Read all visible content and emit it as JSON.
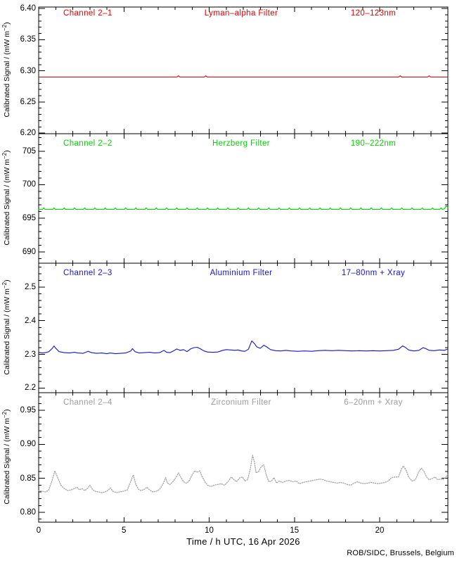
{
  "page": {
    "background": "#ffffff",
    "credit": "ROB/SIDC, Brussels, Belgium"
  },
  "axis": {
    "x_title": "Time / h UTC, 16 Apr 2026",
    "x_range": [
      0,
      24
    ],
    "x_ticks": [
      0,
      5,
      10,
      15,
      20
    ],
    "x_tick_labels": [
      "0",
      "5",
      "10",
      "15",
      "20"
    ],
    "x_minor_step": 1,
    "y_label_pre": "Calibrated Signal / (mW m",
    "y_label_sup": "−2",
    "y_label_post": ")",
    "frame_color": "#000000"
  },
  "chart_data": [
    {
      "type": "line",
      "channel": "Channel 2–1",
      "filter": "Lyman–alpha Filter",
      "band": "120–123nm",
      "color": "#e10000",
      "line_style": "solid",
      "ylim": [
        6.199,
        6.4025
      ],
      "yticks": [
        6.2,
        6.25,
        6.3,
        6.35,
        6.4
      ],
      "ytick_labels": [
        "6.20",
        "6.25",
        "6.30",
        "6.35",
        "6.40"
      ],
      "y_minor_step": 0.01,
      "baseline": 6.29,
      "spike_value": 6.292,
      "spike_halfwidth": 0.09,
      "spike_times": [
        8.2,
        9.8,
        21.2,
        22.9
      ]
    },
    {
      "type": "line",
      "channel": "Channel 2–2",
      "filter": "Herzberg Filter",
      "band": "190–222nm",
      "color": "#00d300",
      "line_style": "solid",
      "ylim": [
        688.3,
        707.6
      ],
      "yticks": [
        690,
        695,
        700,
        705
      ],
      "ytick_labels": [
        "690",
        "695",
        "700",
        "705"
      ],
      "y_minor_step": 1,
      "baseline": 696.33,
      "spike_value": 696.55,
      "spike_halfwidth": 0.07,
      "spike_times": [
        0.3,
        0.9,
        1.5,
        2.1,
        2.7,
        3.3,
        3.9,
        4.5,
        5.1,
        5.7,
        6.3,
        6.9,
        7.5,
        8.1,
        8.7,
        9.3,
        9.9,
        10.5,
        11.1,
        11.7,
        12.3,
        12.9,
        13.5,
        14.1,
        14.7,
        15.3,
        15.9,
        16.5,
        17.1,
        17.7,
        18.3,
        18.9,
        19.5,
        20.1,
        20.7,
        21.3,
        21.9,
        22.5,
        23.1,
        23.6
      ],
      "tail_points": [
        [
          23.8,
          696.4
        ],
        [
          23.9,
          696.85
        ],
        [
          24,
          696.6
        ]
      ]
    },
    {
      "type": "line",
      "channel": "Channel 2–3",
      "filter": "Aluminium Filter",
      "band": "17–80nm + Xray",
      "color": "#1414cd",
      "line_style": "solid",
      "ylim": [
        2.186,
        2.571
      ],
      "yticks": [
        2.2,
        2.3,
        2.4,
        2.5
      ],
      "ytick_labels": [
        "2.2",
        "2.3",
        "2.4",
        "2.5"
      ],
      "y_minor_step": 0.02,
      "points": [
        [
          0,
          2.306
        ],
        [
          0.2,
          2.304
        ],
        [
          0.4,
          2.305
        ],
        [
          0.6,
          2.308
        ],
        [
          0.8,
          2.318
        ],
        [
          0.9,
          2.325
        ],
        [
          1.0,
          2.318
        ],
        [
          1.2,
          2.308
        ],
        [
          1.5,
          2.305
        ],
        [
          1.8,
          2.304
        ],
        [
          2.1,
          2.306
        ],
        [
          2.3,
          2.304
        ],
        [
          2.6,
          2.303
        ],
        [
          2.9,
          2.309
        ],
        [
          3.1,
          2.305
        ],
        [
          3.4,
          2.303
        ],
        [
          3.7,
          2.304
        ],
        [
          4.0,
          2.302
        ],
        [
          4.2,
          2.304
        ],
        [
          4.5,
          2.302
        ],
        [
          4.8,
          2.303
        ],
        [
          5.1,
          2.304
        ],
        [
          5.4,
          2.31
        ],
        [
          5.5,
          2.317
        ],
        [
          5.65,
          2.308
        ],
        [
          5.9,
          2.304
        ],
        [
          6.2,
          2.305
        ],
        [
          6.5,
          2.306
        ],
        [
          6.8,
          2.304
        ],
        [
          7.1,
          2.305
        ],
        [
          7.35,
          2.312
        ],
        [
          7.5,
          2.306
        ],
        [
          7.7,
          2.305
        ],
        [
          7.9,
          2.31
        ],
        [
          8.1,
          2.316
        ],
        [
          8.3,
          2.312
        ],
        [
          8.5,
          2.314
        ],
        [
          8.7,
          2.308
        ],
        [
          8.9,
          2.316
        ],
        [
          9.1,
          2.32
        ],
        [
          9.3,
          2.321
        ],
        [
          9.5,
          2.316
        ],
        [
          9.7,
          2.31
        ],
        [
          9.9,
          2.307
        ],
        [
          10.2,
          2.306
        ],
        [
          10.5,
          2.307
        ],
        [
          10.8,
          2.312
        ],
        [
          11.0,
          2.314
        ],
        [
          11.3,
          2.313
        ],
        [
          11.5,
          2.312
        ],
        [
          11.7,
          2.313
        ],
        [
          11.9,
          2.31
        ],
        [
          12.1,
          2.309
        ],
        [
          12.3,
          2.315
        ],
        [
          12.5,
          2.34
        ],
        [
          12.65,
          2.332
        ],
        [
          12.8,
          2.322
        ],
        [
          13.0,
          2.318
        ],
        [
          13.2,
          2.327
        ],
        [
          13.35,
          2.323
        ],
        [
          13.6,
          2.314
        ],
        [
          13.9,
          2.311
        ],
        [
          14.2,
          2.31
        ],
        [
          14.5,
          2.312
        ],
        [
          14.8,
          2.31
        ],
        [
          15.2,
          2.309
        ],
        [
          15.6,
          2.31
        ],
        [
          16.0,
          2.309
        ],
        [
          16.4,
          2.311
        ],
        [
          16.8,
          2.312
        ],
        [
          17.2,
          2.311
        ],
        [
          17.6,
          2.312
        ],
        [
          18.0,
          2.311
        ],
        [
          18.4,
          2.31
        ],
        [
          18.8,
          2.311
        ],
        [
          19.2,
          2.31
        ],
        [
          19.6,
          2.311
        ],
        [
          20.0,
          2.31
        ],
        [
          20.4,
          2.311
        ],
        [
          20.8,
          2.312
        ],
        [
          21.1,
          2.315
        ],
        [
          21.35,
          2.325
        ],
        [
          21.5,
          2.321
        ],
        [
          21.7,
          2.313
        ],
        [
          22.0,
          2.31
        ],
        [
          22.3,
          2.312
        ],
        [
          22.55,
          2.32
        ],
        [
          22.7,
          2.317
        ],
        [
          22.9,
          2.312
        ],
        [
          23.2,
          2.311
        ],
        [
          23.5,
          2.313
        ],
        [
          23.8,
          2.312
        ],
        [
          24.0,
          2.316
        ]
      ]
    },
    {
      "type": "line",
      "channel": "Channel 2–4",
      "filter": "Zirconium Filter",
      "band": "6–20nm + Xray",
      "color": "#9b9b9b",
      "line_style": "dotted",
      "ylim": [
        0.7855,
        0.976
      ],
      "yticks": [
        0.8,
        0.85,
        0.9,
        0.95
      ],
      "ytick_labels": [
        "0.80",
        "0.85",
        "0.90",
        "0.95"
      ],
      "y_minor_step": 0.01,
      "points": [
        [
          0,
          0.832
        ],
        [
          0.2,
          0.831
        ],
        [
          0.4,
          0.83
        ],
        [
          0.6,
          0.833
        ],
        [
          0.8,
          0.848
        ],
        [
          0.95,
          0.861
        ],
        [
          1.1,
          0.852
        ],
        [
          1.3,
          0.84
        ],
        [
          1.5,
          0.835
        ],
        [
          1.7,
          0.832
        ],
        [
          1.9,
          0.833
        ],
        [
          2.1,
          0.835
        ],
        [
          2.25,
          0.837
        ],
        [
          2.4,
          0.833
        ],
        [
          2.55,
          0.835
        ],
        [
          2.7,
          0.832
        ],
        [
          2.9,
          0.836
        ],
        [
          3.0,
          0.84
        ],
        [
          3.15,
          0.834
        ],
        [
          3.3,
          0.831
        ],
        [
          3.5,
          0.83
        ],
        [
          3.7,
          0.829
        ],
        [
          3.9,
          0.83
        ],
        [
          4.1,
          0.833
        ],
        [
          4.2,
          0.836
        ],
        [
          4.35,
          0.831
        ],
        [
          4.55,
          0.829
        ],
        [
          4.75,
          0.83
        ],
        [
          4.95,
          0.831
        ],
        [
          5.2,
          0.833
        ],
        [
          5.45,
          0.849
        ],
        [
          5.55,
          0.855
        ],
        [
          5.7,
          0.841
        ],
        [
          5.85,
          0.834
        ],
        [
          6.0,
          0.832
        ],
        [
          6.2,
          0.834
        ],
        [
          6.35,
          0.837
        ],
        [
          6.5,
          0.833
        ],
        [
          6.7,
          0.83
        ],
        [
          6.9,
          0.831
        ],
        [
          7.1,
          0.834
        ],
        [
          7.3,
          0.842
        ],
        [
          7.45,
          0.851
        ],
        [
          7.55,
          0.843
        ],
        [
          7.7,
          0.841
        ],
        [
          7.9,
          0.846
        ],
        [
          8.1,
          0.853
        ],
        [
          8.2,
          0.858
        ],
        [
          8.35,
          0.851
        ],
        [
          8.5,
          0.845
        ],
        [
          8.65,
          0.843
        ],
        [
          8.8,
          0.845
        ],
        [
          9.0,
          0.855
        ],
        [
          9.15,
          0.861
        ],
        [
          9.3,
          0.859
        ],
        [
          9.45,
          0.861
        ],
        [
          9.6,
          0.852
        ],
        [
          9.75,
          0.845
        ],
        [
          9.9,
          0.84
        ],
        [
          10.1,
          0.838
        ],
        [
          10.3,
          0.84
        ],
        [
          10.5,
          0.841
        ],
        [
          10.7,
          0.842
        ],
        [
          10.9,
          0.84
        ],
        [
          11.1,
          0.845
        ],
        [
          11.3,
          0.852
        ],
        [
          11.45,
          0.848
        ],
        [
          11.6,
          0.845
        ],
        [
          11.8,
          0.851
        ],
        [
          11.95,
          0.852
        ],
        [
          12.1,
          0.846
        ],
        [
          12.25,
          0.848
        ],
        [
          12.4,
          0.862
        ],
        [
          12.55,
          0.884
        ],
        [
          12.65,
          0.874
        ],
        [
          12.75,
          0.858
        ],
        [
          12.9,
          0.86
        ],
        [
          13.05,
          0.867
        ],
        [
          13.2,
          0.87
        ],
        [
          13.35,
          0.855
        ],
        [
          13.5,
          0.845
        ],
        [
          13.65,
          0.846
        ],
        [
          13.8,
          0.851
        ],
        [
          13.95,
          0.843
        ],
        [
          14.1,
          0.846
        ],
        [
          14.3,
          0.844
        ],
        [
          14.5,
          0.846
        ],
        [
          14.7,
          0.847
        ],
        [
          14.9,
          0.845
        ],
        [
          15.1,
          0.846
        ],
        [
          15.3,
          0.842
        ],
        [
          15.5,
          0.844
        ],
        [
          15.7,
          0.845
        ],
        [
          15.9,
          0.846
        ],
        [
          16.1,
          0.847
        ],
        [
          16.3,
          0.848
        ],
        [
          16.5,
          0.849
        ],
        [
          16.7,
          0.848
        ],
        [
          16.9,
          0.846
        ],
        [
          17.1,
          0.845
        ],
        [
          17.3,
          0.844
        ],
        [
          17.5,
          0.843
        ],
        [
          17.7,
          0.844
        ],
        [
          17.9,
          0.843
        ],
        [
          18.1,
          0.841
        ],
        [
          18.3,
          0.84
        ],
        [
          18.5,
          0.843
        ],
        [
          18.7,
          0.845
        ],
        [
          18.9,
          0.843
        ],
        [
          19.1,
          0.842
        ],
        [
          19.3,
          0.843
        ],
        [
          19.5,
          0.844
        ],
        [
          19.7,
          0.843
        ],
        [
          19.9,
          0.842
        ],
        [
          20.1,
          0.843
        ],
        [
          20.3,
          0.844
        ],
        [
          20.5,
          0.846
        ],
        [
          20.7,
          0.851
        ],
        [
          20.9,
          0.852
        ],
        [
          21.1,
          0.852
        ],
        [
          21.3,
          0.865
        ],
        [
          21.4,
          0.868
        ],
        [
          21.55,
          0.862
        ],
        [
          21.7,
          0.852
        ],
        [
          21.9,
          0.846
        ],
        [
          22.1,
          0.848
        ],
        [
          22.3,
          0.86
        ],
        [
          22.45,
          0.865
        ],
        [
          22.6,
          0.86
        ],
        [
          22.75,
          0.852
        ],
        [
          22.9,
          0.848
        ],
        [
          23.1,
          0.85
        ],
        [
          23.25,
          0.852
        ],
        [
          23.4,
          0.848
        ],
        [
          23.55,
          0.849
        ],
        [
          23.7,
          0.848
        ],
        [
          23.85,
          0.851
        ],
        [
          24,
          0.856
        ]
      ]
    }
  ]
}
